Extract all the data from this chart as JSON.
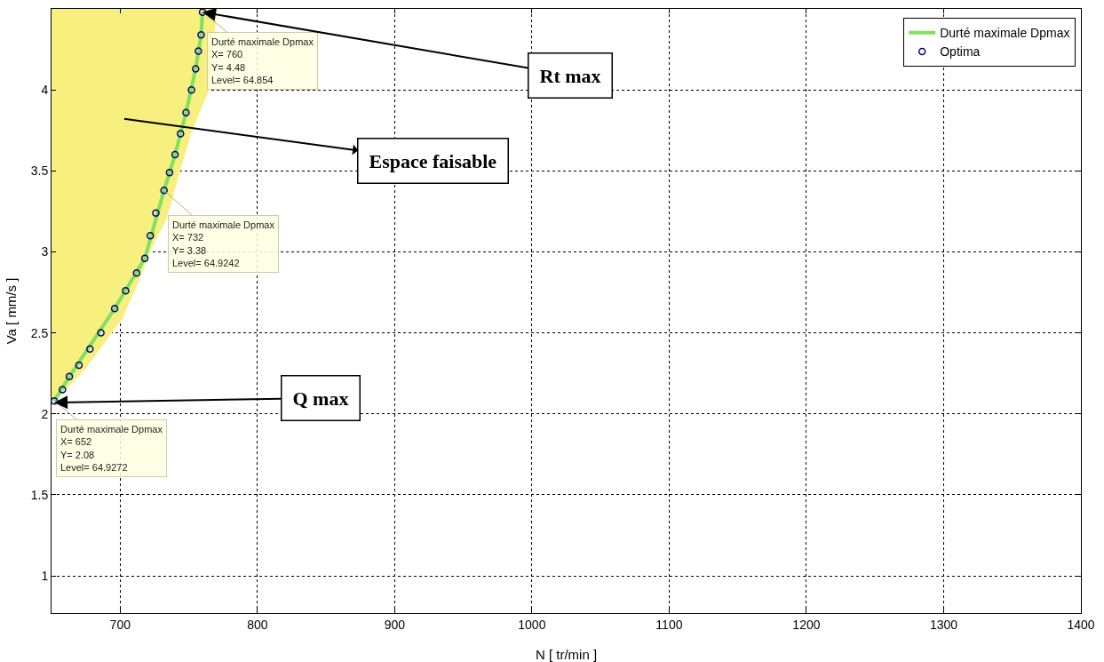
{
  "chart_data": {
    "type": "line",
    "xlabel": "N [ tr/min ]",
    "ylabel": "Va [ mm/s ]",
    "xlim": [
      650,
      1400
    ],
    "xticks": [
      700,
      800,
      900,
      1000,
      1100,
      1200,
      1300,
      1400
    ],
    "ylim": [
      0.77,
      4.5
    ],
    "yticks": [
      1,
      1.5,
      2,
      2.5,
      3,
      3.5,
      4
    ],
    "grid": true,
    "legend": "top right",
    "series": [
      {
        "type": "area",
        "color": "#f7f07e",
        "x": [
          652,
          675,
          701,
          712,
          722,
          733,
          751,
          764,
          770
        ],
        "values": [
          2.08,
          2.29,
          2.59,
          2.8,
          3.02,
          3.2,
          3.73,
          4.0,
          4.5
        ]
      },
      {
        "name": "Durté maximale Dpmax",
        "color": "#80e060",
        "marker": "none",
        "x": [
          652,
          663,
          696,
          718,
          732,
          740,
          748,
          755,
          759,
          760
        ],
        "values": [
          2.08,
          2.23,
          2.65,
          2.96,
          3.38,
          3.6,
          3.86,
          4.13,
          4.34,
          4.48
        ]
      },
      {
        "type": "scatter",
        "name": "Optima",
        "color": "#000080",
        "marker": "circle",
        "x": [
          652,
          658,
          663,
          670,
          678,
          686,
          696,
          704,
          712,
          718,
          722,
          726,
          732,
          736,
          740,
          744,
          748,
          752,
          755,
          757,
          759,
          760
        ],
        "values": [
          2.08,
          2.15,
          2.23,
          2.3,
          2.4,
          2.5,
          2.65,
          2.76,
          2.87,
          2.96,
          3.1,
          3.24,
          3.38,
          3.49,
          3.6,
          3.73,
          3.86,
          4.0,
          4.13,
          4.24,
          4.34,
          4.48
        ]
      }
    ],
    "annotations": [
      {
        "text": "Durté maximale Dpmax\nX= 760\nY= 4.48\nLevel= 64.854",
        "x": 760,
        "y": 4.48
      },
      {
        "text": "Durté maximale Dpmax\nX= 732\nY= 3.38\nLevel= 64.9242",
        "x": 732,
        "y": 3.38
      },
      {
        "text": "Durté maximale Dpmax\nX= 652\nY= 2.08\nLevel= 64.9272",
        "x": 652,
        "y": 2.08
      },
      {
        "text": "Rt max",
        "x": 760,
        "y": 4.48
      },
      "Espace faisable",
      {
        "text": "Q max",
        "x": 652,
        "y": 2.07
      }
    ]
  }
}
